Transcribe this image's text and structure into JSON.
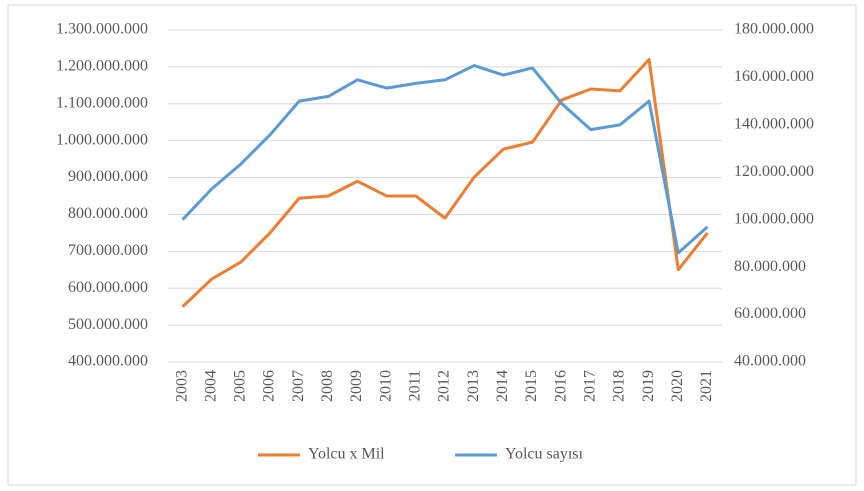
{
  "chart_data": {
    "type": "line",
    "categories": [
      "2003",
      "2004",
      "2005",
      "2006",
      "2007",
      "2008",
      "2009",
      "2010",
      "2011",
      "2012",
      "2013",
      "2014",
      "2015",
      "2016",
      "2017",
      "2018",
      "2019",
      "2020",
      "2021"
    ],
    "series": [
      {
        "name": "Yolcu x Mil",
        "color": "#ed7d31",
        "axis": "y",
        "values": [
          550000000,
          625000000,
          671000000,
          750000000,
          844000000,
          850000000,
          890000000,
          850000000,
          850000000,
          790000000,
          901000000,
          977000000,
          996000000,
          1110000000,
          1140000000,
          1135000000,
          1220000000,
          650000000,
          750000000
        ]
      },
      {
        "name": "Yolcu sayısı",
        "color": "#5b9bd5",
        "axis": "y2",
        "values": [
          100000000,
          113000000,
          123500000,
          135800000,
          150000000,
          152000000,
          159000000,
          155500000,
          157500000,
          159000000,
          165000000,
          161000000,
          164000000,
          149000000,
          138000000,
          140000000,
          150000000,
          86000000,
          97000000
        ]
      }
    ],
    "ylim": [
      400000000,
      1300000000
    ],
    "yticks": [
      {
        "value": 400000000,
        "label": "400.000.000"
      },
      {
        "value": 500000000,
        "label": "500.000.000"
      },
      {
        "value": 600000000,
        "label": "600.000.000"
      },
      {
        "value": 700000000,
        "label": "700.000.000"
      },
      {
        "value": 800000000,
        "label": "800.000.000"
      },
      {
        "value": 900000000,
        "label": "900.000.000"
      },
      {
        "value": 1000000000,
        "label": "1.000.000.000"
      },
      {
        "value": 1100000000,
        "label": "1.100.000.000"
      },
      {
        "value": 1200000000,
        "label": "1.200.000.000"
      },
      {
        "value": 1300000000,
        "label": "1.300.000.000"
      }
    ],
    "y2lim": [
      40000000,
      180000000
    ],
    "y2ticks": [
      {
        "value": 40000000,
        "label": "40.000.000"
      },
      {
        "value": 60000000,
        "label": "60.000.000"
      },
      {
        "value": 80000000,
        "label": "80.000.000"
      },
      {
        "value": 100000000,
        "label": "100.000.000"
      },
      {
        "value": 120000000,
        "label": "120.000.000"
      },
      {
        "value": 140000000,
        "label": "140.000.000"
      },
      {
        "value": 160000000,
        "label": "160.000.000"
      },
      {
        "value": 180000000,
        "label": "180.000.000"
      }
    ],
    "grid": true,
    "legend": "bottom"
  }
}
